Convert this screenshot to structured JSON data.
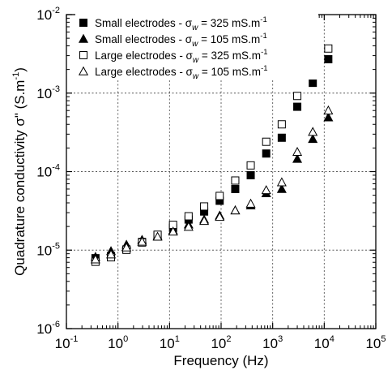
{
  "chart_data": {
    "type": "scatter",
    "xlabel": "Frequency (Hz)",
    "ylabel": "Quadrature conductivity σ\" (S.m",
    "ylabel_unit_exp": "-1",
    "ylabel_close": ")",
    "x_scale": "log",
    "y_scale": "log",
    "xlim": [
      0.1,
      100000
    ],
    "ylim": [
      1e-06,
      0.01
    ],
    "grid": true,
    "legend_position": "top-left",
    "x_ticks": [
      {
        "base": "10",
        "exp": "-1",
        "value": 0.1
      },
      {
        "base": "10",
        "exp": "0",
        "value": 1
      },
      {
        "base": "10",
        "exp": "1",
        "value": 10
      },
      {
        "base": "10",
        "exp": "2",
        "value": 100
      },
      {
        "base": "10",
        "exp": "3",
        "value": 1000
      },
      {
        "base": "10",
        "exp": "4",
        "value": 10000
      },
      {
        "base": "10",
        "exp": "5",
        "value": 100000
      }
    ],
    "y_ticks": [
      {
        "base": "10",
        "exp": "-6",
        "value": 1e-06
      },
      {
        "base": "10",
        "exp": "-5",
        "value": 1e-05
      },
      {
        "base": "10",
        "exp": "-4",
        "value": 0.0001
      },
      {
        "base": "10",
        "exp": "-3",
        "value": 0.001
      },
      {
        "base": "10",
        "exp": "-2",
        "value": 0.01
      }
    ],
    "series": [
      {
        "label_prefix": "Small electrodes - σ",
        "label_sub": "w",
        "label_mid": " = 325 mS.m",
        "label_sup": "-1",
        "marker": "square-filled",
        "x": [
          0.366,
          0.732,
          1.46,
          2.93,
          5.86,
          11.7,
          23.4,
          46.9,
          93.8,
          188,
          375,
          750,
          1500,
          3000,
          6000,
          12000
        ],
        "y": [
          7.9e-06,
          8.4e-06,
          1.02e-05,
          1.27e-05,
          1.55e-05,
          1.92e-05,
          2.45e-05,
          3.1e-05,
          4.25e-05,
          6e-05,
          9e-05,
          0.00017,
          0.00027,
          0.00067,
          0.00135,
          0.0027
        ]
      },
      {
        "label_prefix": "Small electrodes - σ",
        "label_sub": "w",
        "label_mid": " = 105 mS.m",
        "label_sup": "-1",
        "marker": "triangle-filled",
        "x": [
          0.366,
          0.732,
          1.46,
          2.93,
          5.86,
          11.7,
          23.4,
          46.9,
          93.8,
          188,
          375,
          750,
          1500,
          3000,
          6000,
          12000
        ],
        "y": [
          8.2e-06,
          9.7e-06,
          1.17e-05,
          1.35e-05,
          1.52e-05,
          1.78e-05,
          2.12e-05,
          2.45e-05,
          2.75e-05,
          3.2e-05,
          3.7e-05,
          5.3e-05,
          6e-05,
          0.000145,
          0.00026,
          0.00049
        ]
      },
      {
        "label_prefix": "Large electrodes - σ",
        "label_sub": "w",
        "label_mid": " = 325 mS.m",
        "label_sup": "-1",
        "marker": "square-open",
        "x": [
          0.366,
          0.732,
          1.46,
          2.93,
          5.86,
          11.7,
          23.4,
          46.9,
          93.8,
          188,
          375,
          750,
          1500,
          3000,
          6000,
          12000
        ],
        "y": [
          7.1e-06,
          8.1e-06,
          1.01e-05,
          1.25e-05,
          1.57e-05,
          2.1e-05,
          2.7e-05,
          3.6e-05,
          4.9e-05,
          7.7e-05,
          0.00012,
          0.00024,
          0.0004,
          0.00092,
          0.00185,
          0.0037
        ]
      },
      {
        "label_prefix": "Large electrodes - σ",
        "label_sub": "w",
        "label_mid": " = 105 mS.m",
        "label_sup": "-1",
        "marker": "triangle-open",
        "x": [
          0.366,
          0.732,
          1.46,
          2.93,
          5.86,
          11.7,
          23.4,
          46.9,
          93.8,
          188,
          375,
          750,
          1500,
          3000,
          6000,
          12000
        ],
        "y": [
          7.6e-06,
          8.8e-06,
          1.08e-05,
          1.28e-05,
          1.48e-05,
          1.72e-05,
          1.98e-05,
          2.35e-05,
          2.65e-05,
          3.2e-05,
          3.9e-05,
          5.8e-05,
          7.3e-05,
          0.000178,
          0.00032,
          0.0006
        ]
      }
    ]
  }
}
